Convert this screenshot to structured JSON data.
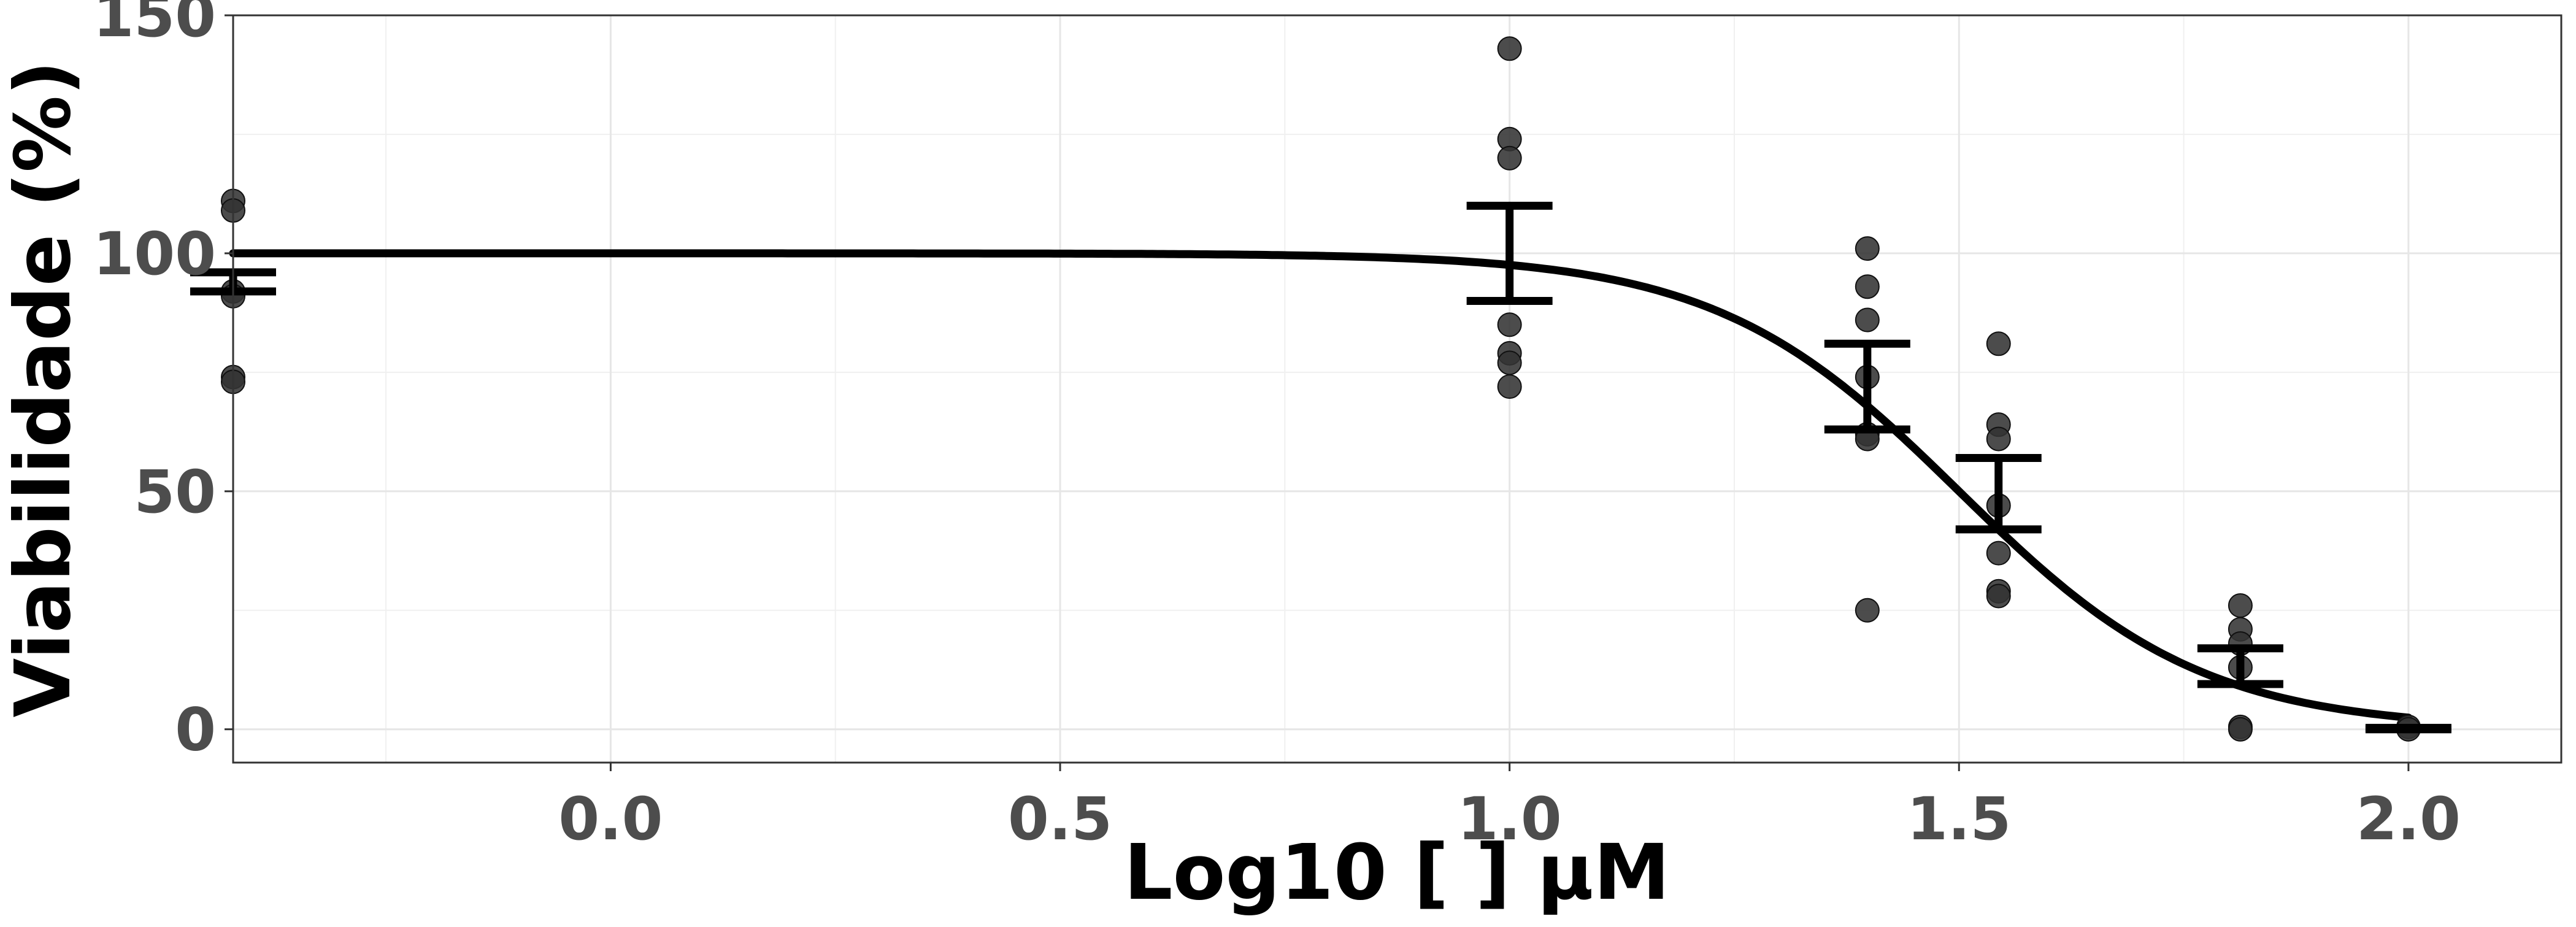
{
  "chart_data": {
    "type": "scatter",
    "xlabel": "Log10 [   ] µM",
    "ylabel": "Viabilidade (%)",
    "xlim": [
      -0.42,
      2.17
    ],
    "ylim": [
      -7,
      150
    ],
    "x_ticks": [
      0.0,
      0.5,
      1.0,
      1.5,
      2.0
    ],
    "x_tick_labels": [
      "0.0",
      "0.5",
      "1.0",
      "1.5",
      "2.0"
    ],
    "y_ticks": [
      0,
      50,
      100,
      150
    ],
    "y_tick_labels": [
      "0",
      "50",
      "100",
      "150"
    ],
    "grid": true,
    "legend": "none",
    "points": [
      {
        "x": -0.42,
        "y": 111
      },
      {
        "x": -0.42,
        "y": 109
      },
      {
        "x": -0.42,
        "y": 92
      },
      {
        "x": -0.42,
        "y": 91
      },
      {
        "x": -0.42,
        "y": 74
      },
      {
        "x": -0.42,
        "y": 73
      },
      {
        "x": 1.0,
        "y": 143
      },
      {
        "x": 1.0,
        "y": 124
      },
      {
        "x": 1.0,
        "y": 120
      },
      {
        "x": 1.0,
        "y": 85
      },
      {
        "x": 1.0,
        "y": 79
      },
      {
        "x": 1.0,
        "y": 77
      },
      {
        "x": 1.0,
        "y": 72
      },
      {
        "x": 1.398,
        "y": 101
      },
      {
        "x": 1.398,
        "y": 93
      },
      {
        "x": 1.398,
        "y": 86
      },
      {
        "x": 1.398,
        "y": 74
      },
      {
        "x": 1.398,
        "y": 62
      },
      {
        "x": 1.398,
        "y": 61
      },
      {
        "x": 1.398,
        "y": 25
      },
      {
        "x": 1.544,
        "y": 81
      },
      {
        "x": 1.544,
        "y": 64
      },
      {
        "x": 1.544,
        "y": 61
      },
      {
        "x": 1.544,
        "y": 47
      },
      {
        "x": 1.544,
        "y": 37
      },
      {
        "x": 1.544,
        "y": 29
      },
      {
        "x": 1.544,
        "y": 28
      },
      {
        "x": 1.813,
        "y": 26
      },
      {
        "x": 1.813,
        "y": 21
      },
      {
        "x": 1.813,
        "y": 18
      },
      {
        "x": 1.813,
        "y": 13
      },
      {
        "x": 1.813,
        "y": 0.5
      },
      {
        "x": 1.813,
        "y": 0
      },
      {
        "x": 2.0,
        "y": 0.5
      },
      {
        "x": 2.0,
        "y": 0
      }
    ],
    "error_bars": [
      {
        "x": -0.42,
        "low": 92,
        "high": 96
      },
      {
        "x": 1.0,
        "low": 90,
        "high": 110
      },
      {
        "x": 1.398,
        "low": 63,
        "high": 81
      },
      {
        "x": 1.544,
        "low": 42,
        "high": 57
      },
      {
        "x": 1.813,
        "low": 9.5,
        "high": 17
      },
      {
        "x": 2.0,
        "low": 0,
        "high": 0.3
      }
    ],
    "fit": {
      "model": "four-parameter logistic",
      "top": 100,
      "bottom": 0,
      "log_ic50": 1.5,
      "hill": 3.2,
      "x_range": [
        -0.42,
        2.0
      ]
    }
  }
}
